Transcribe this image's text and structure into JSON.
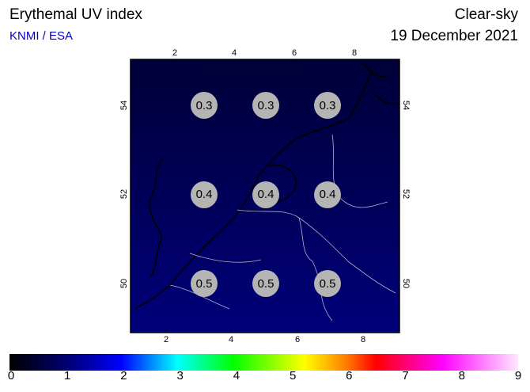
{
  "header": {
    "title": "Erythemal UV index",
    "source": "KNMI / ESA",
    "sky": "Clear-sky",
    "date": "19 December 2021"
  },
  "map": {
    "top_ticks": [
      "2",
      "4",
      "6",
      "8"
    ],
    "bottom_ticks": [
      "2",
      "4",
      "6",
      "8"
    ],
    "left_ticks": [
      "54",
      "52",
      "50"
    ],
    "right_ticks": [
      "54",
      "52",
      "50"
    ],
    "values": [
      [
        "0.3",
        "0.3",
        "0.3"
      ],
      [
        "0.4",
        "0.4",
        "0.4"
      ],
      [
        "0.5",
        "0.5",
        "0.5"
      ]
    ]
  },
  "colorbar": {
    "labels": [
      "0",
      "1",
      "2",
      "3",
      "4",
      "5",
      "6",
      "7",
      "8",
      "9"
    ]
  }
}
